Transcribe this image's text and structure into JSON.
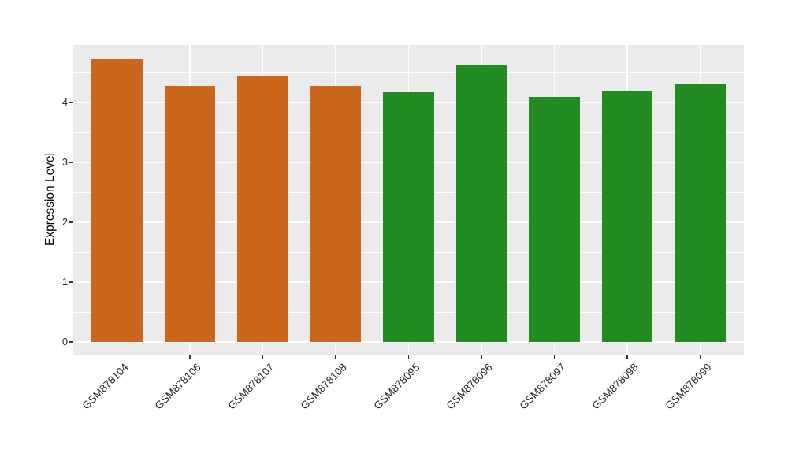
{
  "figure": {
    "background": "#FFFFFF"
  },
  "chart_data": {
    "type": "bar",
    "title": "",
    "xlabel": "",
    "ylabel": "Expression Level",
    "categories": [
      "GSM878104",
      "GSM878106",
      "GSM878107",
      "GSM878108",
      "GSM878095",
      "GSM878096",
      "GSM878097",
      "GSM878098",
      "GSM878099"
    ],
    "values": [
      4.72,
      4.28,
      4.43,
      4.28,
      4.17,
      4.63,
      4.09,
      4.18,
      4.31
    ],
    "bar_colors": [
      "#CD661D",
      "#CD661D",
      "#CD661D",
      "#CD661D",
      "#228B22",
      "#228B22",
      "#228B22",
      "#228B22",
      "#228B22"
    ],
    "group_colors": {
      "orange_group": "#CD661D",
      "green_group": "#228B22"
    },
    "yticks": [
      0,
      1,
      2,
      3,
      4
    ],
    "ylim": [
      0,
      4.96
    ],
    "grid": true,
    "grid_minor_step": 0.5,
    "legend": "none",
    "panel_background": "#EBEBEB",
    "gridline_color": "#FFFFFF",
    "tick_color": "#333333",
    "text_color": "#262626",
    "bar_width_fraction": 0.7,
    "x_label_rotation_deg": 45
  }
}
